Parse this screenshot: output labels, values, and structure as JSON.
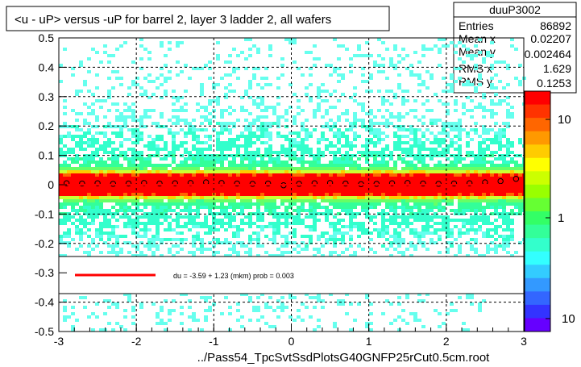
{
  "title": "<u - uP>       versus  -uP for barrel 2, layer 3 ladder 2, all wafers",
  "footer": "../Pass54_TpcSvtSsdPlotsG40GNFP25rCut0.5cm.root",
  "stats": {
    "name": "duuP3002",
    "rows": [
      {
        "label": "Entries",
        "value": "86892"
      },
      {
        "label": "Mean x",
        "value": "0.02207"
      },
      {
        "label": "Mean y",
        "value": "0.002464"
      },
      {
        "label": "RMS x",
        "value": "1.629"
      },
      {
        "label": "RMS y",
        "value": "0.1253"
      }
    ]
  },
  "legend": {
    "text": "du =   -3.59 +   1.23 (mkm) prob = 0.003",
    "line_color": "#ff0000"
  },
  "colors": {
    "frame": "#000000",
    "fit_line": "#ff0000",
    "marker": "#000000",
    "grid": "#000000"
  },
  "chart_data": {
    "type": "heatmap",
    "title": "<u - uP>       versus  -uP for barrel 2, layer 3 ladder 2, all wafers",
    "xlabel": "",
    "ylabel": "",
    "xlim": [
      -3,
      3
    ],
    "ylim": [
      -0.5,
      0.5
    ],
    "x_ticks": [
      "-3",
      "-2",
      "-1",
      "0",
      "1",
      "2",
      "3"
    ],
    "y_ticks": [
      "-0.5",
      "-0.4",
      "-0.3",
      "-0.2",
      "-0.1",
      "0",
      "0.1",
      "0.2",
      "0.3",
      "0.4",
      "0.5"
    ],
    "z_scale": "log",
    "z_ticks": [
      "10",
      "1",
      "10"
    ],
    "grid": true,
    "profile": {
      "x": [
        -2.9,
        -2.7,
        -2.5,
        -2.3,
        -2.1,
        -1.9,
        -1.7,
        -1.5,
        -1.3,
        -1.1,
        -0.9,
        -0.7,
        -0.5,
        -0.3,
        -0.1,
        0.1,
        0.3,
        0.5,
        0.7,
        0.9,
        1.1,
        1.3,
        1.5,
        1.7,
        1.9,
        2.1,
        2.3,
        2.5,
        2.7,
        2.9
      ],
      "y": [
        0.005,
        0.004,
        0.005,
        0.003,
        0.004,
        0.006,
        0.004,
        0.005,
        0.006,
        0.008,
        0.006,
        0.004,
        0.003,
        0.004,
        -0.002,
        0.003,
        0.005,
        0.006,
        0.004,
        0.002,
        0.003,
        0.005,
        0.006,
        0.004,
        0.003,
        0.004,
        0.005,
        0.008,
        0.012,
        0.02
      ]
    },
    "fit": {
      "intercept": 0.0,
      "slope": 0.0
    }
  }
}
